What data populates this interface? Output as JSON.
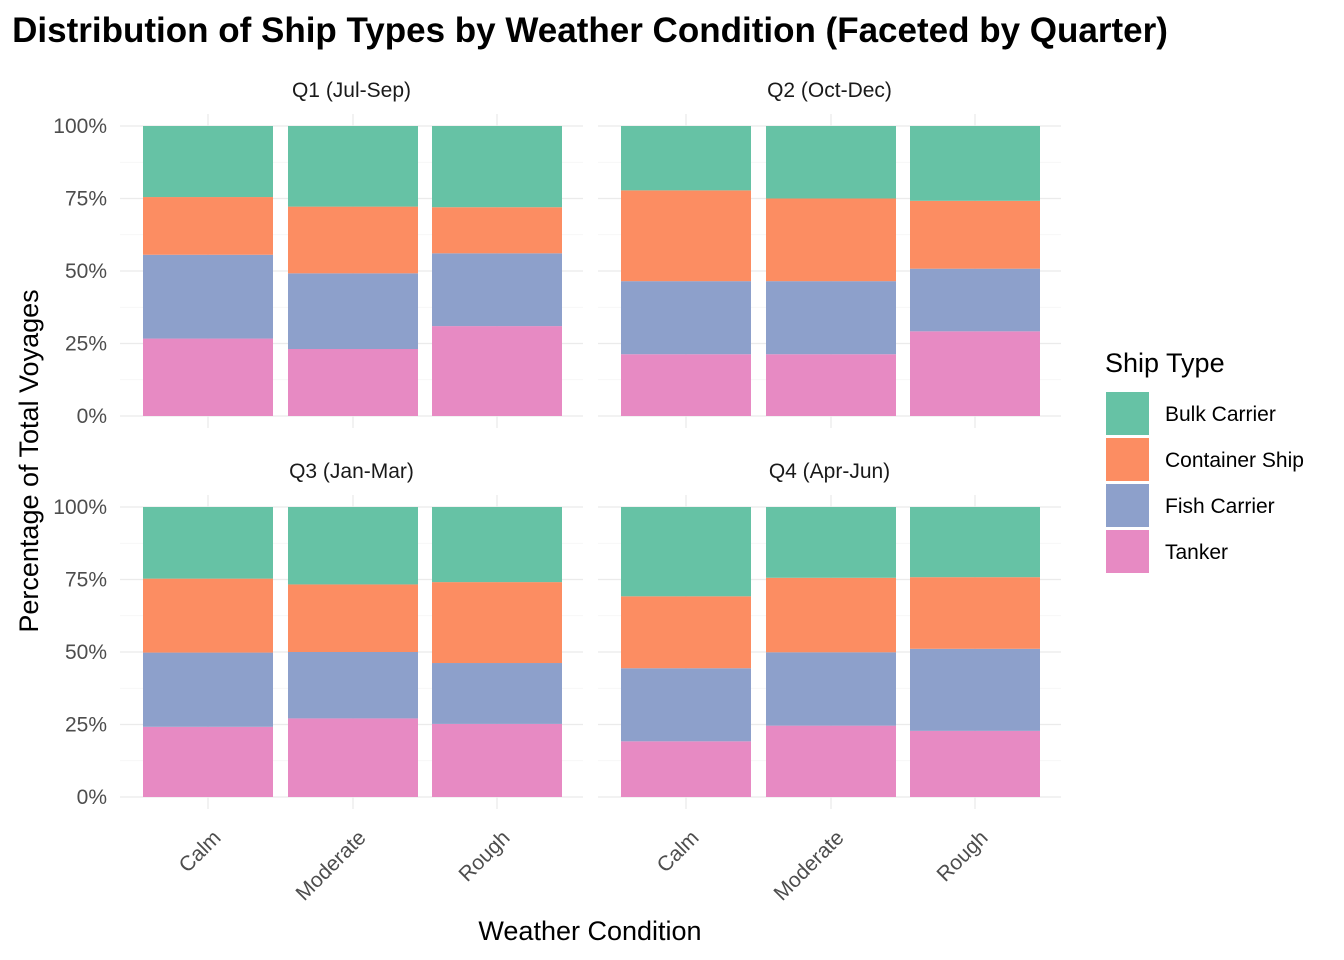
{
  "chart_data": {
    "type": "bar",
    "title": "Distribution of Ship Types by Weather Condition (Faceted by Quarter)",
    "xlabel": "Weather Condition",
    "ylabel": "Percentage of Total Voyages",
    "ylim": [
      0,
      100
    ],
    "yticks": [
      "0%",
      "25%",
      "50%",
      "75%",
      "100%"
    ],
    "categories": [
      "Calm",
      "Moderate",
      "Rough"
    ],
    "legend": {
      "title": "Ship Type",
      "position": "right"
    },
    "stack_order_top_to_bottom": [
      "Bulk Carrier",
      "Container Ship",
      "Fish Carrier",
      "Tanker"
    ],
    "colors": {
      "Bulk Carrier": "#66C2A5",
      "Container Ship": "#FC8D62",
      "Fish Carrier": "#8DA0CB",
      "Tanker": "#E78AC3"
    },
    "grid": true,
    "facets": [
      {
        "label": "Q1 (Jul-Sep)",
        "series": [
          {
            "name": "Tanker",
            "values": [
              26.7,
              23.1,
              31.0
            ]
          },
          {
            "name": "Fish Carrier",
            "values": [
              28.9,
              26.1,
              25.1
            ]
          },
          {
            "name": "Container Ship",
            "values": [
              19.9,
              23.0,
              15.9
            ]
          },
          {
            "name": "Bulk Carrier",
            "values": [
              24.5,
              27.8,
              28.0
            ]
          }
        ]
      },
      {
        "label": "Q2 (Oct-Dec)",
        "series": [
          {
            "name": "Tanker",
            "values": [
              21.3,
              21.3,
              29.2
            ]
          },
          {
            "name": "Fish Carrier",
            "values": [
              25.2,
              25.2,
              21.6
            ]
          },
          {
            "name": "Container Ship",
            "values": [
              31.3,
              28.5,
              23.4
            ]
          },
          {
            "name": "Bulk Carrier",
            "values": [
              22.2,
              25.0,
              25.8
            ]
          }
        ]
      },
      {
        "label": "Q3 (Jan-Mar)",
        "series": [
          {
            "name": "Tanker",
            "values": [
              24.2,
              27.1,
              25.2
            ]
          },
          {
            "name": "Fish Carrier",
            "values": [
              25.6,
              22.9,
              21.0
            ]
          },
          {
            "name": "Container Ship",
            "values": [
              25.5,
              23.3,
              27.9
            ]
          },
          {
            "name": "Bulk Carrier",
            "values": [
              24.7,
              26.7,
              25.9
            ]
          }
        ]
      },
      {
        "label": "Q4 (Apr-Jun)",
        "series": [
          {
            "name": "Tanker",
            "values": [
              19.2,
              24.6,
              22.8
            ]
          },
          {
            "name": "Fish Carrier",
            "values": [
              25.2,
              25.3,
              28.3
            ]
          },
          {
            "name": "Container Ship",
            "values": [
              24.8,
              25.7,
              24.7
            ]
          },
          {
            "name": "Bulk Carrier",
            "values": [
              30.8,
              24.4,
              24.2
            ]
          }
        ]
      }
    ]
  }
}
